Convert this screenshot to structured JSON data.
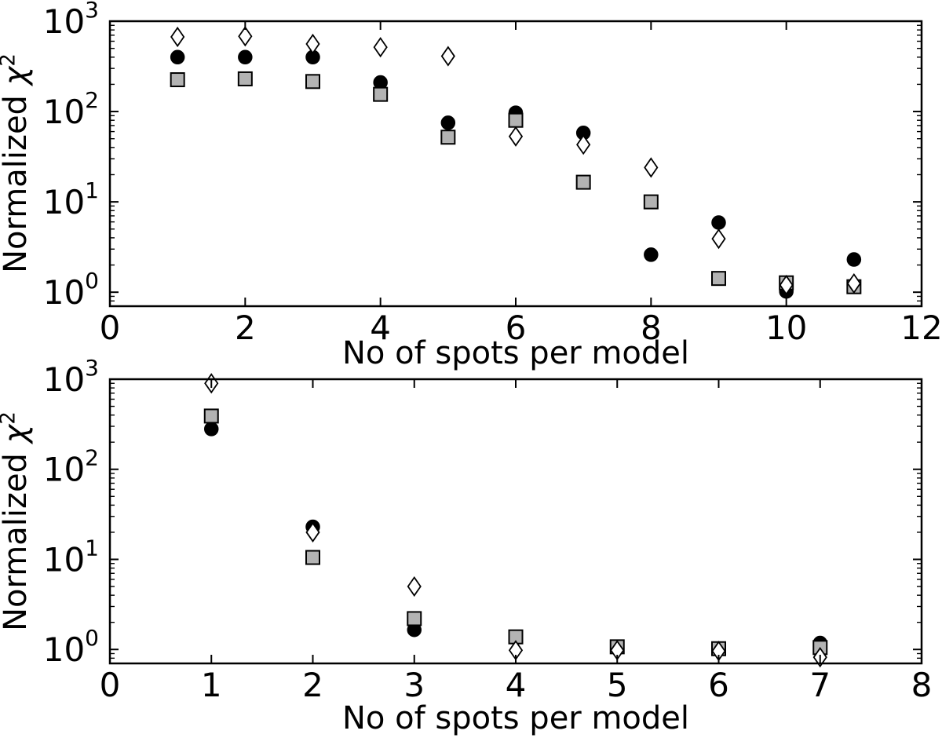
{
  "figure": {
    "background": "#ffffff",
    "frame_color": "#000000",
    "square_fill": "#b3b3b3",
    "circle_fill": "#000000",
    "diamond_fill": "#ffffff"
  },
  "chart_data": [
    {
      "type": "scatter",
      "title": "",
      "xlabel": "No of spots per model",
      "ylabel": "Normalized χ²",
      "ylabel_parts": {
        "prefix": "Normalized ",
        "symbol": "χ",
        "exponent": "2"
      },
      "x_range": [
        0,
        12
      ],
      "x_ticks": [
        0,
        2,
        4,
        6,
        8,
        10,
        12
      ],
      "y_scale": "log",
      "y_range": [
        0.7,
        1000
      ],
      "y_tick_exponents": [
        0,
        1,
        2,
        3
      ],
      "grid": false,
      "legend": "none",
      "x": [
        1,
        2,
        3,
        4,
        5,
        6,
        7,
        8,
        9,
        10,
        11
      ],
      "series": [
        {
          "name": "filled-circle",
          "marker": "circle",
          "fill": "#000000",
          "values": [
            400,
            400,
            400,
            210,
            75,
            97,
            58,
            2.6,
            5.9,
            1.02,
            2.3
          ]
        },
        {
          "name": "gray-square",
          "marker": "square",
          "fill": "#b3b3b3",
          "values": [
            225,
            230,
            215,
            155,
            52,
            80,
            16.5,
            10,
            1.42,
            1.27,
            1.15
          ]
        },
        {
          "name": "open-diamond",
          "marker": "diamond",
          "fill": "#ffffff",
          "values": [
            670,
            680,
            560,
            515,
            410,
            53,
            43,
            24,
            3.9,
            1.2,
            1.25
          ]
        }
      ]
    },
    {
      "type": "scatter",
      "title": "",
      "xlabel": "No of spots per model",
      "ylabel": "Normalized χ²",
      "ylabel_parts": {
        "prefix": "Normalized ",
        "symbol": "χ",
        "exponent": "2"
      },
      "x_range": [
        0,
        8
      ],
      "x_ticks": [
        0,
        1,
        2,
        3,
        4,
        5,
        6,
        7,
        8
      ],
      "y_scale": "log",
      "y_range": [
        0.7,
        1000
      ],
      "y_tick_exponents": [
        0,
        1,
        2,
        3
      ],
      "grid": false,
      "legend": "none",
      "x": [
        1,
        2,
        3,
        4,
        5,
        6,
        7
      ],
      "series": [
        {
          "name": "filled-circle",
          "marker": "circle",
          "fill": "#000000",
          "values": [
            280,
            23,
            1.65,
            1.35,
            1.06,
            1.0,
            1.18
          ]
        },
        {
          "name": "gray-square",
          "marker": "square",
          "fill": "#b3b3b3",
          "values": [
            390,
            10.5,
            2.2,
            1.38,
            1.07,
            1.02,
            1.05
          ]
        },
        {
          "name": "open-diamond",
          "marker": "diamond",
          "fill": "#ffffff",
          "values": [
            900,
            20,
            5.0,
            0.98,
            0.98,
            0.96,
            0.82
          ]
        }
      ]
    }
  ]
}
